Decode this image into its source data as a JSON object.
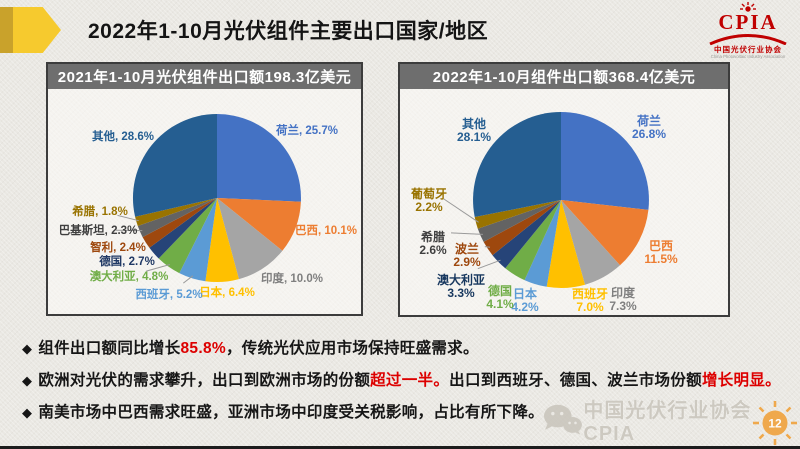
{
  "header": {
    "title": "2022年1-10月光伏组件主要出口国家/地区",
    "logo": {
      "brand": "CPIA",
      "org_cn": "中国光伏行业协会",
      "org_en": "China Photovoltaic Industry Association"
    }
  },
  "chart_data": [
    {
      "type": "pie",
      "title": "2021年1-10月光伏组件出口额198.3亿美元",
      "unit": "%",
      "label_style": "inline",
      "legend_position": "none",
      "slices": [
        {
          "label": "荷兰",
          "value": 25.7,
          "color": "#4472C4",
          "label_color": "#4472C4",
          "label_pos": [
            259,
            45
          ],
          "leader": false
        },
        {
          "label": "巴西",
          "value": 10.1,
          "color": "#ED7D31",
          "label_color": "#ED7D31",
          "label_pos": [
            278,
            145
          ],
          "leader": false
        },
        {
          "label": "印度",
          "value": 10.0,
          "color": "#A5A5A5",
          "label_color": "#7F7F7F",
          "label_pos": [
            244,
            193
          ],
          "leader": false
        },
        {
          "label": "日本",
          "value": 6.4,
          "color": "#FFC000",
          "label_color": "#FFC000",
          "label_pos": [
            179,
            207
          ],
          "leader": false
        },
        {
          "label": "西班牙",
          "value": 5.2,
          "color": "#5B9BD5",
          "label_color": "#5B9BD5",
          "label_pos": [
            121,
            209
          ],
          "leader": true
        },
        {
          "label": "澳大利亚",
          "value": 4.8,
          "color": "#70AD47",
          "label_color": "#70AD47",
          "label_pos": [
            81,
            191
          ],
          "leader": true
        },
        {
          "label": "德国",
          "value": 2.7,
          "color": "#264478",
          "label_color": "#1F3864",
          "label_pos": [
            79,
            176
          ],
          "leader": false
        },
        {
          "label": "智利",
          "value": 2.4,
          "color": "#9E480E",
          "label_color": "#9E480E",
          "label_pos": [
            70,
            162
          ],
          "leader": false
        },
        {
          "label": "巴基斯坦",
          "value": 2.3,
          "color": "#636363",
          "label_color": "#3F3F3F",
          "label_pos": [
            50,
            145
          ],
          "leader": true
        },
        {
          "label": "希腊",
          "value": 1.8,
          "color": "#997300",
          "label_color": "#997300",
          "label_pos": [
            52,
            126
          ],
          "leader": true
        },
        {
          "label": "其他",
          "value": 28.6,
          "color": "#255E91",
          "label_color": "#255E91",
          "label_pos": [
            75,
            51
          ],
          "leader": false
        }
      ]
    },
    {
      "type": "pie",
      "title": "2022年1-10月组件出口额368.4亿美元",
      "unit": "%",
      "label_style": "two_line",
      "legend_position": "none",
      "slices": [
        {
          "label": "荷兰",
          "value": 26.8,
          "color": "#4472C4",
          "label_color": "#4472C4",
          "label_pos": [
            249,
            36
          ],
          "leader": false
        },
        {
          "label": "巴西",
          "value": 11.5,
          "color": "#ED7D31",
          "label_color": "#ED7D31",
          "label_pos": [
            261,
            161
          ],
          "leader": false
        },
        {
          "label": "印度",
          "value": 7.3,
          "color": "#A5A5A5",
          "label_color": "#7F7F7F",
          "label_pos": [
            223,
            208
          ],
          "leader": false
        },
        {
          "label": "西班牙",
          "value": 7.0,
          "color": "#FFC000",
          "label_color": "#FFC000",
          "label_pos": [
            190,
            209
          ],
          "leader": false
        },
        {
          "label": "日本",
          "value": 4.2,
          "color": "#5B9BD5",
          "label_color": "#5B9BD5",
          "label_pos": [
            125,
            209
          ],
          "leader": false
        },
        {
          "label": "德国",
          "value": 4.1,
          "color": "#70AD47",
          "label_color": "#70AD47",
          "label_pos": [
            100,
            206
          ],
          "leader": false
        },
        {
          "label": "澳大利亚",
          "value": 3.3,
          "color": "#264478",
          "label_color": "#17375E",
          "label_pos": [
            61,
            195
          ],
          "leader": true
        },
        {
          "label": "波兰",
          "value": 2.9,
          "color": "#9E480E",
          "label_color": "#9E480E",
          "label_pos": [
            67,
            164
          ],
          "leader": true
        },
        {
          "label": "希腊",
          "value": 2.6,
          "color": "#636363",
          "label_color": "#3F3F3F",
          "label_pos": [
            33,
            152
          ],
          "leader": true
        },
        {
          "label": "葡萄牙",
          "value": 2.2,
          "color": "#997300",
          "label_color": "#997300",
          "label_pos": [
            29,
            109
          ],
          "leader": true
        },
        {
          "label": "其他",
          "value": 28.1,
          "color": "#255E91",
          "label_color": "#255E91",
          "label_pos": [
            74,
            39
          ],
          "leader": false
        }
      ]
    }
  ],
  "bullets": {
    "marker": "◆",
    "red_color": "#dd0000",
    "items": [
      {
        "segments": [
          {
            "text": "组件出口额同比增长"
          },
          {
            "text": "85.8%",
            "red": true
          },
          {
            "text": "，传统光伏应用市场保持旺盛需求。"
          }
        ]
      },
      {
        "segments": [
          {
            "text": "欧洲对光伏的需求攀升，出口到欧洲市场的份额"
          },
          {
            "text": "超过一半。",
            "red": true
          },
          {
            "text": "出口到西班牙、德国、波兰市场份额"
          },
          {
            "text": "增长明显。",
            "red": true
          }
        ]
      },
      {
        "segments": [
          {
            "text": "南美市场中巴西需求旺盛，亚洲市场中印度受关税影响，占比有所下降。"
          }
        ]
      }
    ]
  },
  "watermark": {
    "text": "中国光伏行业协会CPIA"
  },
  "page": {
    "number": "12"
  }
}
